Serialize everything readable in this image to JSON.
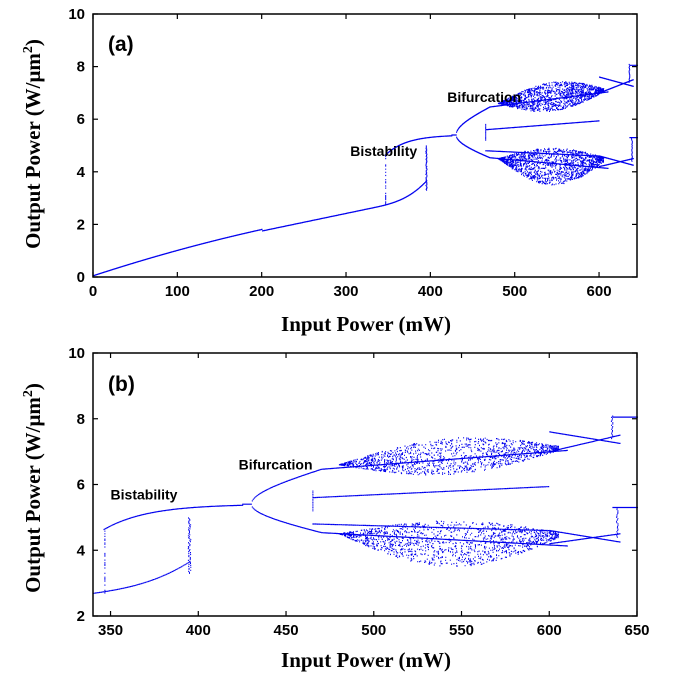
{
  "chart_data": [
    {
      "type": "scatter",
      "panel_label": "(a)",
      "xlabel": "Input Power (mW)",
      "ylabel_main": "Output Power (W/μm",
      "ylabel_sup": "2",
      "ylabel_close": ")",
      "xlim": [
        0,
        645
      ],
      "ylim": [
        0,
        10
      ],
      "xticks": [
        0,
        100,
        200,
        300,
        400,
        500,
        600
      ],
      "yticks": [
        0,
        2,
        4,
        6,
        8,
        10
      ],
      "series_color": "#0000ee",
      "annotations": [
        {
          "text": "Bistability",
          "x": 305,
          "y": 4.6
        },
        {
          "text": "Bifurcation",
          "x": 420,
          "y": 6.65
        }
      ],
      "series": [
        {
          "values_x": [
            0,
            50,
            100,
            150,
            200,
            250,
            300,
            350,
            380,
            395
          ],
          "values_y": [
            0.05,
            0.6,
            1.05,
            1.4,
            1.75,
            2.05,
            2.4,
            2.75,
            3.05,
            3.35
          ]
        },
        {
          "values_x": [
            348,
            350,
            360,
            380,
            400,
            425
          ],
          "values_y": [
            4.55,
            4.7,
            4.88,
            5.1,
            5.26,
            5.4
          ]
        }
      ]
    },
    {
      "type": "scatter",
      "panel_label": "(b)",
      "xlabel": "Input Power (mW)",
      "ylabel_main": "Output Power (W/μm",
      "ylabel_sup": "2",
      "ylabel_close": ")",
      "xlim": [
        340,
        650
      ],
      "ylim": [
        2,
        10
      ],
      "xticks": [
        350,
        400,
        450,
        500,
        550,
        600,
        650
      ],
      "yticks": [
        2,
        4,
        6,
        8,
        10
      ],
      "series_color": "#0000ee",
      "annotations": [
        {
          "text": "Bistability",
          "x": 350,
          "y": 5.55
        },
        {
          "text": "Bifurcation",
          "x": 423,
          "y": 6.45
        }
      ],
      "series": [
        {
          "values_x": [
            340,
            350,
            360,
            370,
            380,
            390,
            395
          ],
          "values_y": [
            2.55,
            2.65,
            2.75,
            2.88,
            3.02,
            3.22,
            3.4
          ]
        },
        {
          "values_x": [
            348,
            350,
            360,
            380,
            400,
            425
          ],
          "values_y": [
            4.55,
            4.7,
            4.88,
            5.1,
            5.26,
            5.4
          ]
        }
      ]
    }
  ]
}
